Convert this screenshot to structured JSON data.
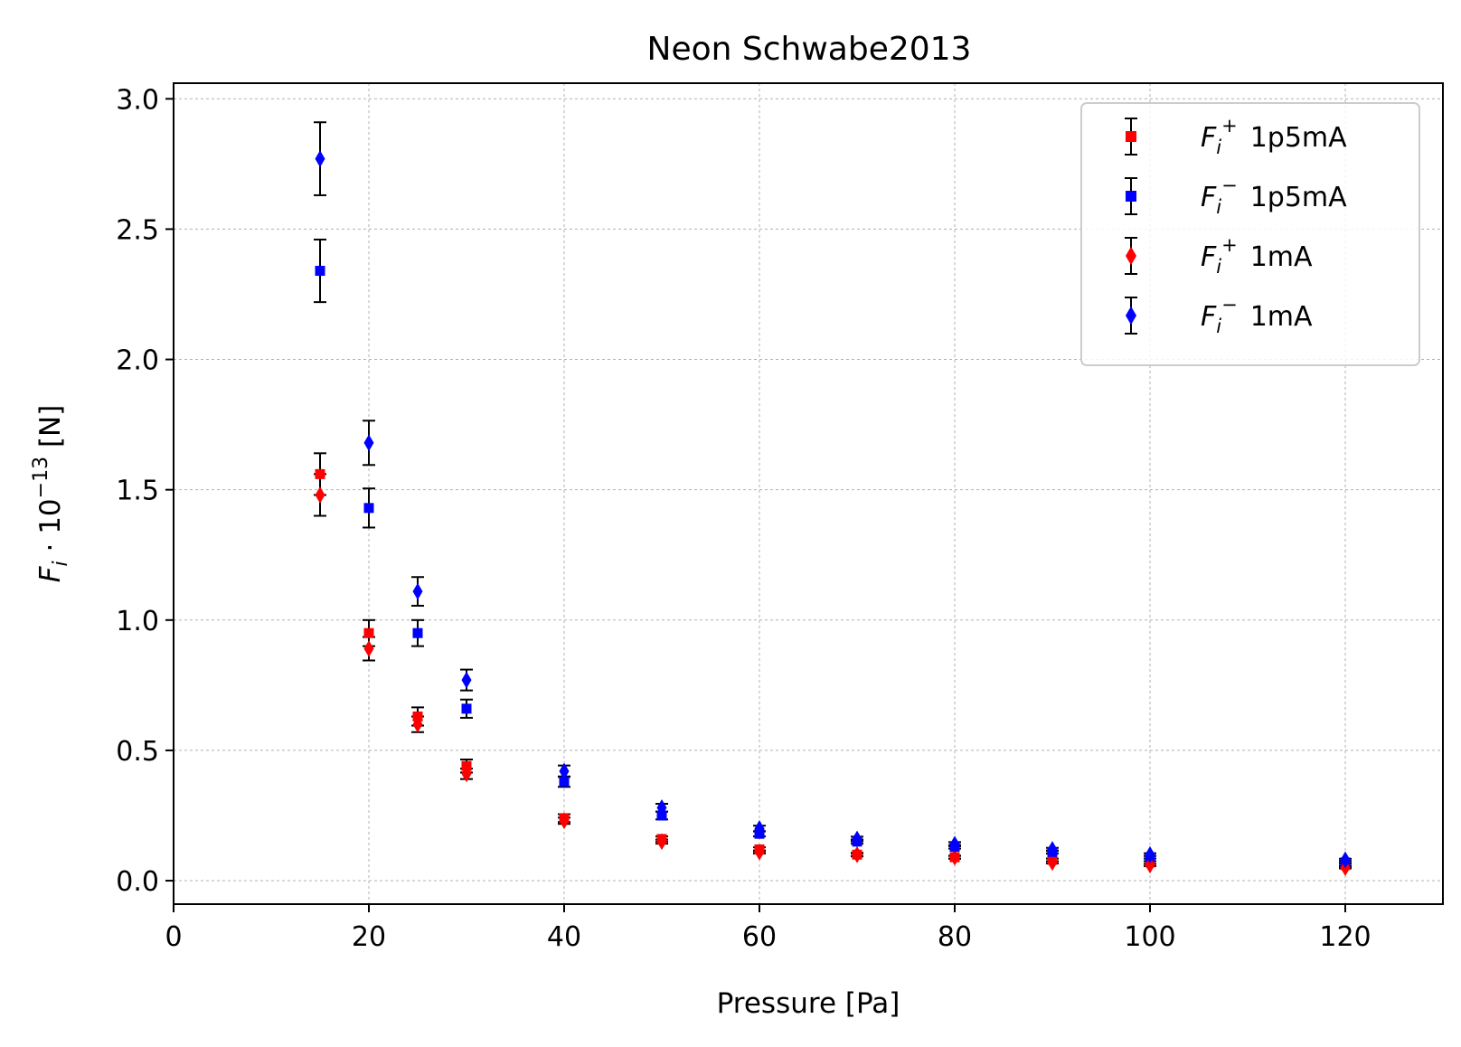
{
  "chart_data": {
    "type": "scatter",
    "title": "Neon Schwabe2013",
    "xlabel": "Pressure [Pa]",
    "ylabel_main": "F",
    "ylabel_sub": "i",
    "ylabel_mid": " · 10",
    "ylabel_sup": "−13",
    "ylabel_unit": " [N]",
    "xlim": [
      0,
      130
    ],
    "ylim": [
      -0.09,
      3.06
    ],
    "xticks": [
      0,
      20,
      40,
      60,
      80,
      100,
      120
    ],
    "xtick_labels": [
      "0",
      "20",
      "40",
      "60",
      "80",
      "100",
      "120"
    ],
    "yticks": [
      0.0,
      0.5,
      1.0,
      1.5,
      2.0,
      2.5,
      3.0
    ],
    "ytick_labels": [
      "0.0",
      "0.5",
      "1.0",
      "1.5",
      "2.0",
      "2.5",
      "3.0"
    ],
    "grid": true,
    "legend_position": "top-right",
    "series": [
      {
        "name_main": "F",
        "name_sub": "i",
        "name_sup": "+",
        "name_rest": "1p5mA",
        "marker": "square",
        "color": "#ff0000",
        "x": [
          15,
          20,
          25,
          30,
          40,
          50,
          60,
          70,
          80,
          90,
          100,
          120
        ],
        "y": [
          1.56,
          0.95,
          0.63,
          0.44,
          0.24,
          0.16,
          0.12,
          0.1,
          0.09,
          0.08,
          0.07,
          0.06
        ],
        "err": [
          0.08,
          0.05,
          0.035,
          0.025,
          0.015,
          0.01,
          0.008,
          0.007,
          0.006,
          0.005,
          0.005,
          0.004
        ]
      },
      {
        "name_main": "F",
        "name_sub": "i",
        "name_sup": "−",
        "name_rest": "1p5mA",
        "marker": "square",
        "color": "#0000ff",
        "x": [
          15,
          20,
          25,
          30,
          40,
          50,
          60,
          70,
          80,
          90,
          100,
          120
        ],
        "y": [
          2.34,
          1.43,
          0.95,
          0.66,
          0.38,
          0.25,
          0.18,
          0.15,
          0.13,
          0.11,
          0.09,
          0.07
        ],
        "err": [
          0.12,
          0.075,
          0.05,
          0.035,
          0.02,
          0.015,
          0.01,
          0.008,
          0.007,
          0.006,
          0.005,
          0.004
        ]
      },
      {
        "name_main": "F",
        "name_sub": "i",
        "name_sup": "+",
        "name_rest": "1mA",
        "marker": "diamond",
        "color": "#ff0000",
        "x": [
          15,
          20,
          25,
          30,
          40,
          50,
          60,
          70,
          80,
          90,
          100,
          120
        ],
        "y": [
          1.48,
          0.89,
          0.6,
          0.41,
          0.23,
          0.15,
          0.11,
          0.1,
          0.09,
          0.07,
          0.06,
          0.05
        ],
        "err": [
          0.08,
          0.045,
          0.03,
          0.02,
          0.012,
          0.008,
          0.006,
          0.005,
          0.005,
          0.004,
          0.004,
          0.003
        ]
      },
      {
        "name_main": "F",
        "name_sub": "i",
        "name_sup": "−",
        "name_rest": "1mA",
        "marker": "diamond",
        "color": "#0000ff",
        "x": [
          15,
          20,
          25,
          30,
          40,
          50,
          60,
          70,
          80,
          90,
          100,
          120
        ],
        "y": [
          2.77,
          1.68,
          1.11,
          0.77,
          0.42,
          0.28,
          0.2,
          0.16,
          0.14,
          0.12,
          0.1,
          0.08
        ],
        "err": [
          0.14,
          0.085,
          0.055,
          0.04,
          0.022,
          0.015,
          0.011,
          0.009,
          0.008,
          0.006,
          0.005,
          0.004
        ]
      }
    ]
  }
}
